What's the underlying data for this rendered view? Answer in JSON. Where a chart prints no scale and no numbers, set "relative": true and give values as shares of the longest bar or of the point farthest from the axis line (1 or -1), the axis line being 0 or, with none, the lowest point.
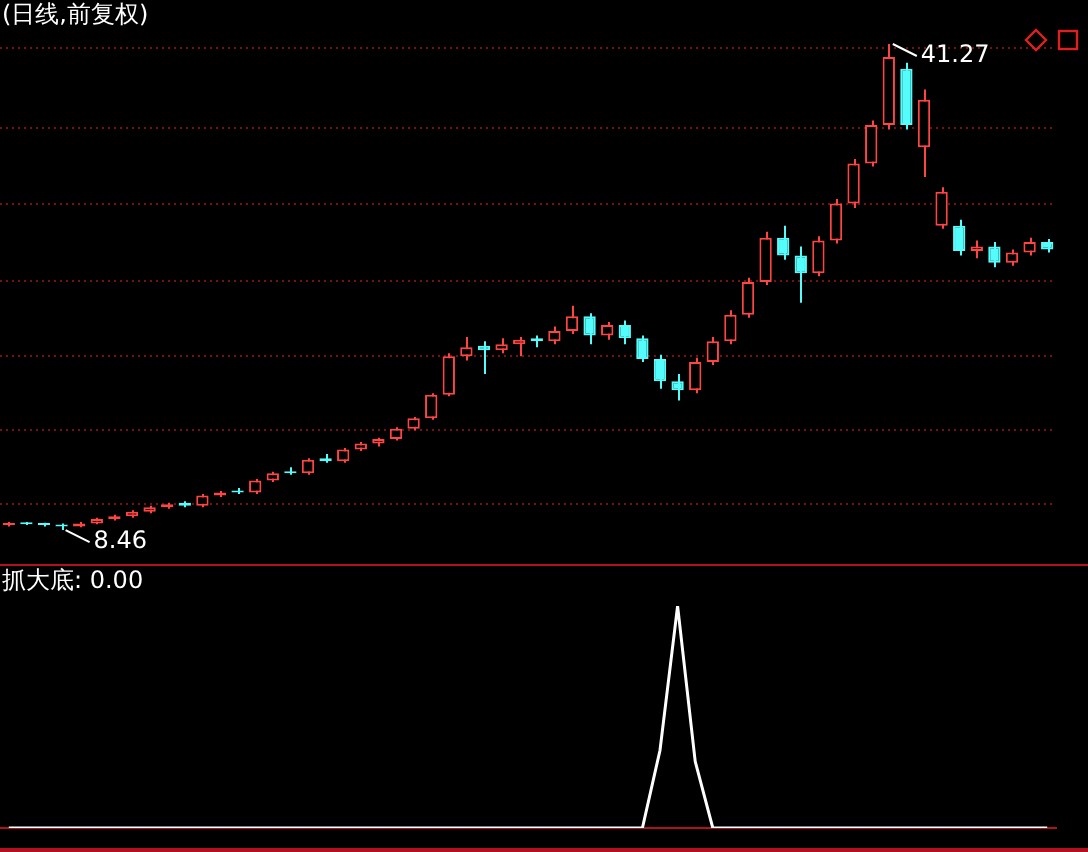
{
  "chart_data": [
    {
      "type": "candlestick",
      "title": "(日线,前复权)",
      "categories": [
        null,
        null,
        null,
        null,
        null,
        null,
        null,
        null,
        null,
        null,
        null,
        null,
        null,
        null,
        null,
        null,
        null,
        null,
        null,
        null,
        null,
        null,
        null,
        null,
        null,
        null,
        null,
        null,
        null,
        null,
        null,
        null,
        null,
        null,
        null,
        null,
        null,
        null,
        null,
        null,
        null,
        null,
        null,
        null,
        null,
        null,
        null,
        null,
        null,
        null,
        null,
        null,
        null,
        null,
        null,
        null,
        null,
        null,
        null,
        null
      ],
      "ohlc": [
        [
          8.8,
          9.0,
          8.7,
          8.9
        ],
        [
          8.9,
          9.0,
          8.8,
          8.85
        ],
        [
          8.85,
          8.95,
          8.7,
          8.8
        ],
        [
          8.8,
          8.9,
          8.46,
          8.7
        ],
        [
          8.7,
          9.0,
          8.65,
          8.9
        ],
        [
          8.9,
          9.3,
          8.85,
          9.2
        ],
        [
          9.2,
          9.5,
          9.1,
          9.4
        ],
        [
          9.4,
          9.8,
          9.3,
          9.7
        ],
        [
          9.7,
          10.1,
          9.6,
          10.0
        ],
        [
          10.0,
          10.3,
          9.9,
          10.2
        ],
        [
          10.3,
          10.4,
          10.0,
          10.1
        ],
        [
          10.1,
          10.9,
          10.0,
          10.8
        ],
        [
          10.8,
          11.1,
          10.7,
          11.0
        ],
        [
          11.1,
          11.3,
          10.9,
          11.0
        ],
        [
          11.0,
          11.9,
          10.9,
          11.8
        ],
        [
          11.8,
          12.4,
          11.7,
          12.3
        ],
        [
          12.4,
          12.7,
          12.2,
          12.3
        ],
        [
          12.3,
          13.3,
          12.2,
          13.2
        ],
        [
          13.3,
          13.6,
          13.0,
          13.1
        ],
        [
          13.1,
          14.0,
          13.0,
          13.9
        ],
        [
          13.9,
          14.4,
          13.8,
          14.3
        ],
        [
          14.3,
          14.7,
          14.1,
          14.6
        ],
        [
          14.6,
          15.4,
          14.5,
          15.3
        ],
        [
          15.3,
          16.1,
          15.2,
          16.0
        ],
        [
          16.0,
          17.7,
          15.9,
          17.6
        ],
        [
          17.6,
          20.4,
          17.5,
          20.2
        ],
        [
          20.2,
          21.5,
          19.9,
          20.8
        ],
        [
          20.9,
          21.2,
          19.0,
          20.6
        ],
        [
          20.6,
          21.4,
          20.4,
          21.0
        ],
        [
          21.0,
          21.5,
          20.2,
          21.3
        ],
        [
          21.4,
          21.6,
          20.8,
          21.2
        ],
        [
          21.2,
          22.2,
          21.0,
          21.9
        ],
        [
          21.9,
          23.6,
          21.7,
          22.9
        ],
        [
          22.9,
          23.1,
          21.0,
          21.6
        ],
        [
          21.6,
          22.5,
          21.3,
          22.3
        ],
        [
          22.3,
          22.6,
          21.0,
          21.4
        ],
        [
          21.4,
          21.6,
          19.8,
          20.0
        ],
        [
          20.0,
          20.3,
          18.0,
          18.5
        ],
        [
          18.5,
          19.0,
          17.2,
          17.9
        ],
        [
          17.9,
          20.1,
          17.7,
          19.8
        ],
        [
          19.8,
          21.5,
          19.6,
          21.2
        ],
        [
          21.2,
          23.3,
          21.0,
          23.0
        ],
        [
          23.0,
          25.5,
          22.8,
          25.2
        ],
        [
          25.2,
          28.6,
          25.0,
          28.2
        ],
        [
          28.2,
          29.0,
          26.7,
          27.0
        ],
        [
          27.0,
          27.6,
          23.8,
          25.8
        ],
        [
          25.8,
          28.3,
          25.6,
          28.0
        ],
        [
          28.0,
          30.8,
          27.8,
          30.5
        ],
        [
          30.5,
          33.5,
          30.2,
          33.2
        ],
        [
          33.2,
          36.1,
          33.0,
          35.8
        ],
        [
          35.8,
          41.27,
          35.5,
          40.4
        ],
        [
          39.6,
          40.0,
          35.5,
          35.8
        ],
        [
          34.3,
          38.2,
          32.3,
          37.5
        ],
        [
          29.0,
          31.6,
          28.8,
          31.3
        ],
        [
          29.0,
          29.4,
          27.0,
          27.3
        ],
        [
          27.3,
          28.0,
          26.8,
          27.6
        ],
        [
          27.6,
          27.9,
          26.2,
          26.5
        ],
        [
          26.5,
          27.4,
          26.3,
          27.2
        ],
        [
          27.2,
          28.2,
          27.0,
          27.9
        ],
        [
          27.9,
          28.1,
          27.2,
          27.4
        ]
      ],
      "colors": [
        "#ff4444",
        "#54fcfc",
        "#54fcfc",
        "#54fcfc",
        "#ff4444",
        "#ff4444",
        "#ff4444",
        "#ff4444",
        "#ff4444",
        "#ff4444",
        "#54fcfc",
        "#ff4444",
        "#ff4444",
        "#54fcfc",
        "#ff4444",
        "#ff4444",
        "#54fcfc",
        "#ff4444",
        "#54fcfc",
        "#ff4444",
        "#ff4444",
        "#ff4444",
        "#ff4444",
        "#ff4444",
        "#ff4444",
        "#ff4444",
        "#ff4444",
        "#54fcfc",
        "#ff4444",
        "#ff4444",
        "#54fcfc",
        "#ff4444",
        "#ff4444",
        "#54fcfc",
        "#ff4444",
        "#54fcfc",
        "#54fcfc",
        "#54fcfc",
        "#54fcfc",
        "#ff4444",
        "#ff4444",
        "#ff4444",
        "#ff4444",
        "#ff4444",
        "#54fcfc",
        "#54fcfc",
        "#ff4444",
        "#ff4444",
        "#ff4444",
        "#ff4444",
        "#ff4444",
        "#54fcfc",
        "#ff4444",
        "#ff4444",
        "#54fcfc",
        "#ff4444",
        "#54fcfc",
        "#ff4444",
        "#ff4444",
        "#54fcfc"
      ],
      "ylim": [
        6.17,
        44.24
      ],
      "yticks": [
        {
          "value": 10.2,
          "label": null
        },
        {
          "value": 15.2,
          "label": null
        },
        {
          "value": 20.2,
          "label": null
        },
        {
          "value": 25.3,
          "label": null
        },
        {
          "value": 30.5,
          "label": null
        },
        {
          "value": 35.6,
          "label": null
        },
        {
          "value": 41.0,
          "label": null
        }
      ],
      "grid": "y",
      "annotations": [
        "41.27",
        "8.46"
      ]
    },
    {
      "type": "line",
      "title": "抓大底: 0.00",
      "relative": true,
      "categories": [
        null,
        null,
        null,
        null,
        null,
        null,
        null,
        null,
        null,
        null,
        null,
        null,
        null,
        null,
        null,
        null,
        null,
        null,
        null,
        null,
        null,
        null,
        null,
        null,
        null,
        null,
        null,
        null,
        null,
        null,
        null,
        null,
        null,
        null,
        null,
        null,
        null,
        null,
        null,
        null,
        null,
        null,
        null,
        null,
        null,
        null,
        null,
        null,
        null,
        null,
        null,
        null,
        null,
        null,
        null,
        null,
        null,
        null,
        null,
        null
      ],
      "series": [
        {
          "color": "#ffffff",
          "values": [
            0,
            0,
            0,
            0,
            0,
            0,
            0,
            0,
            0,
            0,
            0,
            0,
            0,
            0,
            0,
            0,
            0,
            0,
            0,
            0,
            0,
            0,
            0,
            0,
            0,
            0,
            0,
            0,
            0,
            0,
            0,
            0,
            0,
            0,
            0,
            0,
            0,
            0.35,
            1,
            0.3,
            0,
            0,
            0,
            0,
            0,
            0,
            0,
            0,
            0,
            0,
            0,
            0,
            0,
            0,
            0,
            0,
            0,
            0,
            0,
            0
          ]
        }
      ],
      "marker": "none"
    }
  ]
}
